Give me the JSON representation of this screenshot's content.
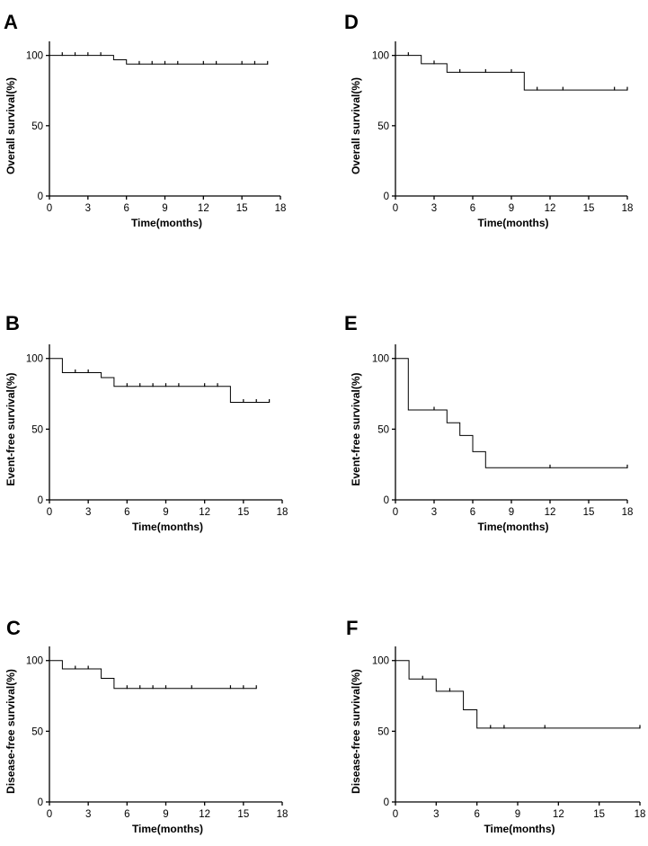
{
  "chart_data": [
    {
      "id": "A",
      "type": "line",
      "title": "A",
      "xlabel": "Time(months)",
      "ylabel": "Overall survival(%)",
      "xlim": [
        0,
        18
      ],
      "ylim": [
        0,
        110
      ],
      "xticks": [
        0,
        3,
        6,
        9,
        12,
        15,
        18
      ],
      "yticks": [
        0,
        50,
        100
      ],
      "steps": [
        [
          0,
          100
        ],
        [
          5,
          100
        ],
        [
          5,
          96.9
        ],
        [
          6,
          96.9
        ],
        [
          6,
          93.8
        ],
        [
          17,
          93.8
        ]
      ],
      "censored": [
        [
          1,
          100
        ],
        [
          2,
          100
        ],
        [
          3,
          100
        ],
        [
          4,
          100
        ],
        [
          7,
          93.8
        ],
        [
          8,
          93.8
        ],
        [
          9,
          93.8
        ],
        [
          10,
          93.8
        ],
        [
          12,
          93.8
        ],
        [
          13,
          93.8
        ],
        [
          15,
          93.8
        ],
        [
          16,
          93.8
        ],
        [
          17,
          93.8
        ]
      ]
    },
    {
      "id": "B",
      "type": "line",
      "title": "B",
      "xlabel": "Time(months)",
      "ylabel": "Event-free survival(%)",
      "xlim": [
        0,
        18
      ],
      "ylim": [
        0,
        110
      ],
      "xticks": [
        0,
        3,
        6,
        9,
        12,
        15,
        18
      ],
      "yticks": [
        0,
        50,
        100
      ],
      "steps": [
        [
          0,
          100
        ],
        [
          1,
          100
        ],
        [
          1,
          90
        ],
        [
          4,
          90
        ],
        [
          4,
          86.5
        ],
        [
          5,
          86.5
        ],
        [
          5,
          80.3
        ],
        [
          14,
          80.3
        ],
        [
          14,
          69
        ],
        [
          17,
          69
        ]
      ],
      "censored": [
        [
          2,
          90
        ],
        [
          3,
          90
        ],
        [
          6,
          80.3
        ],
        [
          7,
          80.3
        ],
        [
          8,
          80.3
        ],
        [
          9,
          80.3
        ],
        [
          10,
          80.3
        ],
        [
          12,
          80.3
        ],
        [
          13,
          80.3
        ],
        [
          15,
          69
        ],
        [
          16,
          69
        ],
        [
          17,
          69
        ]
      ]
    },
    {
      "id": "C",
      "type": "line",
      "title": "C",
      "xlabel": "Time(months)",
      "ylabel": "Disease-free survival(%)",
      "xlim": [
        0,
        18
      ],
      "ylim": [
        0,
        110
      ],
      "xticks": [
        0,
        3,
        6,
        9,
        12,
        15,
        18
      ],
      "yticks": [
        0,
        50,
        100
      ],
      "steps": [
        [
          0,
          100
        ],
        [
          1,
          100
        ],
        [
          1,
          94.1
        ],
        [
          4,
          94.1
        ],
        [
          4,
          87.4
        ],
        [
          5,
          87.4
        ],
        [
          5,
          80.3
        ],
        [
          16,
          80.3
        ]
      ],
      "censored": [
        [
          2,
          94.1
        ],
        [
          3,
          94.1
        ],
        [
          6,
          80.3
        ],
        [
          7,
          80.3
        ],
        [
          8,
          80.3
        ],
        [
          9,
          80.3
        ],
        [
          11,
          80.3
        ],
        [
          14,
          80.3
        ],
        [
          15,
          80.3
        ],
        [
          16,
          80.3
        ]
      ]
    },
    {
      "id": "D",
      "type": "line",
      "title": "D",
      "xlabel": "Time(months)",
      "ylabel": "Overall survival(%)",
      "xlim": [
        0,
        18
      ],
      "ylim": [
        0,
        110
      ],
      "xticks": [
        0,
        3,
        6,
        9,
        12,
        15,
        18
      ],
      "yticks": [
        0,
        50,
        100
      ],
      "steps": [
        [
          0,
          100
        ],
        [
          2,
          100
        ],
        [
          2,
          94.1
        ],
        [
          4,
          94.1
        ],
        [
          4,
          88
        ],
        [
          10,
          88
        ],
        [
          10,
          75.4
        ],
        [
          18,
          75.4
        ]
      ],
      "censored": [
        [
          1,
          100
        ],
        [
          3,
          94.1
        ],
        [
          5,
          88
        ],
        [
          7,
          88
        ],
        [
          9,
          88
        ],
        [
          11,
          75.4
        ],
        [
          13,
          75.4
        ],
        [
          17,
          75.4
        ],
        [
          18,
          75.4
        ]
      ]
    },
    {
      "id": "E",
      "type": "line",
      "title": "E",
      "xlabel": "Time(months)",
      "ylabel": "Event-free survival(%)",
      "xlim": [
        0,
        18
      ],
      "ylim": [
        0,
        110
      ],
      "xticks": [
        0,
        3,
        6,
        9,
        12,
        15,
        18
      ],
      "yticks": [
        0,
        50,
        100
      ],
      "steps": [
        [
          0,
          100
        ],
        [
          1,
          100
        ],
        [
          1,
          63.6
        ],
        [
          4,
          63.6
        ],
        [
          4,
          54.5
        ],
        [
          5,
          54.5
        ],
        [
          5,
          45.5
        ],
        [
          6,
          45.5
        ],
        [
          6,
          34.1
        ],
        [
          7,
          34.1
        ],
        [
          7,
          22.7
        ],
        [
          18,
          22.7
        ]
      ],
      "censored": [
        [
          3,
          63.6
        ],
        [
          12,
          22.7
        ],
        [
          18,
          22.7
        ]
      ]
    },
    {
      "id": "F",
      "type": "line",
      "title": "F",
      "xlabel": "Time(months)",
      "ylabel": "Disease-free survival(%)",
      "xlim": [
        0,
        18
      ],
      "ylim": [
        0,
        110
      ],
      "xticks": [
        0,
        3,
        6,
        9,
        12,
        15,
        18
      ],
      "yticks": [
        0,
        50,
        100
      ],
      "steps": [
        [
          0,
          100
        ],
        [
          1,
          100
        ],
        [
          1,
          87
        ],
        [
          3,
          87
        ],
        [
          3,
          78.3
        ],
        [
          5,
          78.3
        ],
        [
          5,
          65.2
        ],
        [
          6,
          65.2
        ],
        [
          6,
          52.2
        ],
        [
          18,
          52.2
        ]
      ],
      "censored": [
        [
          2,
          87
        ],
        [
          4,
          78.3
        ],
        [
          7,
          52.2
        ],
        [
          8,
          52.2
        ],
        [
          11,
          52.2
        ],
        [
          18,
          52.2
        ]
      ]
    }
  ]
}
